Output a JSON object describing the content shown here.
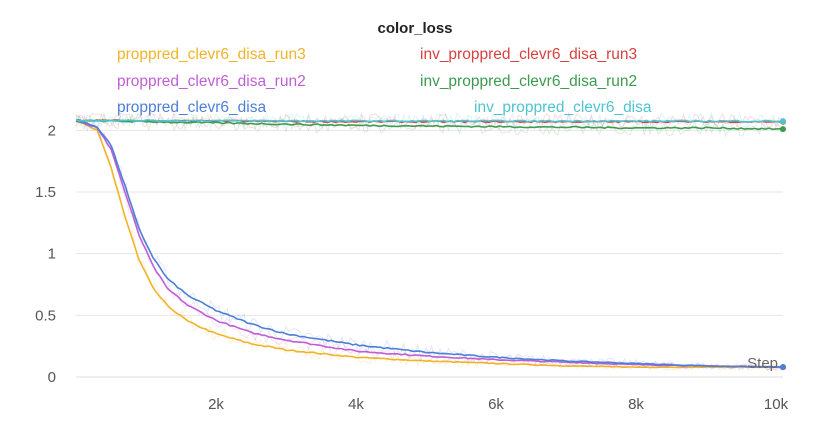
{
  "chart_data": {
    "type": "line",
    "title": "color_loss",
    "xlabel": "Step",
    "ylabel": "",
    "xlim": [
      0,
      10100
    ],
    "ylim": [
      0,
      2.1
    ],
    "x_ticks": [
      2000,
      4000,
      6000,
      8000,
      10000
    ],
    "x_tick_labels": [
      "2k",
      "4k",
      "6k",
      "8k",
      "10k"
    ],
    "y_ticks": [
      0,
      0.5,
      1,
      1.5,
      2
    ],
    "y_tick_labels": [
      "0",
      "0.5",
      "1",
      "1.5",
      "2"
    ],
    "grid": "horizontal",
    "legend_position": "top",
    "series": [
      {
        "name": "proppred_clevr6_disa_run3",
        "color": "#f0b429",
        "x": [
          0,
          300,
          500,
          700,
          900,
          1100,
          1300,
          1600,
          2000,
          2500,
          3000,
          4000,
          5000,
          6000,
          7000,
          8000,
          9000,
          10100
        ],
        "values": [
          2.08,
          2.0,
          1.7,
          1.3,
          0.95,
          0.72,
          0.58,
          0.45,
          0.35,
          0.27,
          0.22,
          0.16,
          0.13,
          0.11,
          0.09,
          0.08,
          0.08,
          0.08
        ]
      },
      {
        "name": "proppred_clevr6_disa_run2",
        "color": "#c05fd4",
        "x": [
          0,
          300,
          500,
          700,
          900,
          1100,
          1300,
          1600,
          2000,
          2500,
          3000,
          4000,
          5000,
          6000,
          7000,
          8000,
          9000,
          10100
        ],
        "values": [
          2.08,
          2.02,
          1.85,
          1.5,
          1.15,
          0.9,
          0.72,
          0.58,
          0.46,
          0.36,
          0.3,
          0.21,
          0.17,
          0.14,
          0.12,
          0.1,
          0.09,
          0.08
        ]
      },
      {
        "name": "proppred_clevr6_disa",
        "color": "#4d7fd6",
        "x": [
          0,
          300,
          500,
          700,
          900,
          1100,
          1300,
          1600,
          2000,
          2500,
          3000,
          4000,
          5000,
          6000,
          7000,
          8000,
          9000,
          10100
        ],
        "values": [
          2.08,
          2.03,
          1.88,
          1.55,
          1.2,
          0.97,
          0.8,
          0.66,
          0.54,
          0.43,
          0.35,
          0.26,
          0.2,
          0.16,
          0.13,
          0.11,
          0.09,
          0.08
        ]
      },
      {
        "name": "inv_proppred_clevr6_disa_run3",
        "color": "#d94040",
        "x": [
          0,
          2000,
          4000,
          6000,
          8000,
          10100
        ],
        "values": [
          2.08,
          2.075,
          2.07,
          2.07,
          2.07,
          2.07
        ]
      },
      {
        "name": "inv_proppred_clevr6_disa_run2",
        "color": "#3d9a50",
        "x": [
          0,
          1000,
          2000,
          3000,
          4000,
          5000,
          6000,
          7000,
          8000,
          9000,
          10100
        ],
        "values": [
          2.08,
          2.07,
          2.06,
          2.05,
          2.04,
          2.035,
          2.03,
          2.025,
          2.02,
          2.02,
          2.01
        ]
      },
      {
        "name": "inv_proppred_clevr6_disa",
        "color": "#4fc4d0",
        "x": [
          0,
          2000,
          4000,
          6000,
          8000,
          10100
        ],
        "values": [
          2.08,
          2.078,
          2.076,
          2.075,
          2.075,
          2.075
        ]
      }
    ]
  }
}
